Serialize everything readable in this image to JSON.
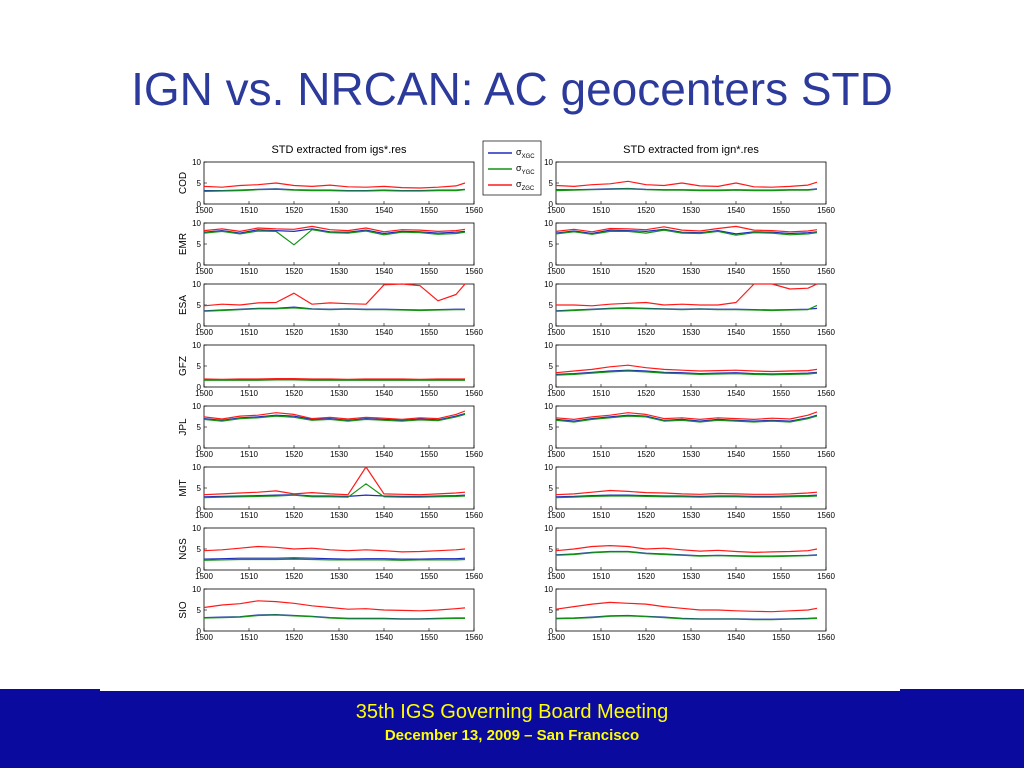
{
  "slide": {
    "title": "IGN vs. NRCAN: AC geocenters STD",
    "footer_title": "35th IGS Governing Board Meeting",
    "footer_subtitle": "December 13, 2009 – San Francisco"
  },
  "chart_data": {
    "type": "line",
    "columns": [
      {
        "title": "STD extracted from igs*.res"
      },
      {
        "title": "STD extracted from ign*.res"
      }
    ],
    "rows": [
      "COD",
      "EMR",
      "ESA",
      "GFZ",
      "JPL",
      "MIT",
      "NGS",
      "SIO"
    ],
    "xlim": [
      1500,
      1560
    ],
    "ylim": [
      0,
      10
    ],
    "xticks": [
      1500,
      1510,
      1520,
      1530,
      1540,
      1550,
      1560
    ],
    "yticks": [
      0,
      5,
      10
    ],
    "legend": {
      "placement": "between-columns-top",
      "entries": [
        {
          "symbol": "σ",
          "sub": "XGC",
          "color": "#1f2dbf"
        },
        {
          "symbol": "σ",
          "sub": "YGC",
          "color": "#149414"
        },
        {
          "symbol": "σ",
          "sub": "ZGC",
          "color": "#ff1a1a"
        }
      ]
    },
    "series_colors": {
      "X": "#1f2dbf",
      "Y": "#149414",
      "Z": "#ff1a1a"
    },
    "x": [
      1500,
      1504,
      1508,
      1512,
      1516,
      1520,
      1524,
      1528,
      1532,
      1536,
      1540,
      1544,
      1548,
      1552,
      1556,
      1558
    ],
    "panels": [
      [
        {
          "X": [
            3.2,
            3.2,
            3.3,
            3.5,
            3.6,
            3.4,
            3.3,
            3.3,
            3.2,
            3.2,
            3.3,
            3.2,
            3.2,
            3.3,
            3.3,
            3.5
          ],
          "Y": [
            3.0,
            3.1,
            3.2,
            3.4,
            3.5,
            3.3,
            3.2,
            3.2,
            3.1,
            3.1,
            3.2,
            3.1,
            3.1,
            3.2,
            3.2,
            3.4
          ],
          "Z": [
            4.2,
            4.0,
            4.4,
            4.6,
            5.0,
            4.4,
            4.2,
            4.5,
            4.1,
            4.0,
            4.2,
            3.9,
            3.8,
            4.0,
            4.3,
            5.0
          ]
        },
        {
          "X": [
            7.8,
            8.2,
            7.6,
            8.4,
            8.2,
            8.0,
            8.6,
            7.9,
            7.8,
            8.3,
            7.5,
            8.0,
            7.9,
            7.6,
            7.8,
            8.0
          ],
          "Y": [
            7.6,
            8.0,
            7.4,
            8.1,
            8.0,
            4.8,
            8.4,
            7.7,
            7.6,
            8.1,
            7.2,
            7.8,
            7.7,
            7.3,
            7.5,
            7.8
          ],
          "Z": [
            8.2,
            8.6,
            8.0,
            8.8,
            8.6,
            8.5,
            9.2,
            8.4,
            8.2,
            8.8,
            7.9,
            8.4,
            8.3,
            8.0,
            8.2,
            8.5
          ]
        },
        {
          "X": [
            3.6,
            3.8,
            4.0,
            4.2,
            4.2,
            4.5,
            4.1,
            4.0,
            4.1,
            4.0,
            4.0,
            3.9,
            3.8,
            3.9,
            4.0,
            4.0
          ],
          "Y": [
            3.5,
            3.7,
            3.9,
            4.1,
            4.1,
            4.3,
            4.0,
            3.9,
            4.0,
            3.9,
            3.9,
            3.8,
            3.7,
            3.8,
            3.9,
            3.9
          ],
          "Z": [
            4.8,
            5.2,
            5.0,
            5.5,
            5.6,
            7.8,
            5.2,
            5.5,
            5.3,
            5.2,
            9.8,
            10.0,
            9.6,
            6.0,
            7.5,
            10.0
          ]
        },
        {
          "X": [
            1.7,
            1.7,
            1.7,
            1.7,
            1.8,
            1.8,
            1.7,
            1.7,
            1.7,
            1.7,
            1.7,
            1.7,
            1.7,
            1.7,
            1.7,
            1.7
          ],
          "Y": [
            1.6,
            1.6,
            1.6,
            1.6,
            1.7,
            1.7,
            1.6,
            1.6,
            1.6,
            1.6,
            1.6,
            1.6,
            1.6,
            1.6,
            1.6,
            1.6
          ],
          "Z": [
            1.9,
            1.8,
            1.9,
            1.9,
            2.0,
            2.0,
            1.9,
            1.9,
            1.8,
            1.9,
            1.9,
            1.9,
            1.8,
            1.9,
            1.9,
            1.9
          ]
        },
        {
          "X": [
            7.0,
            6.6,
            7.2,
            7.4,
            7.8,
            7.6,
            6.8,
            7.0,
            6.6,
            7.0,
            6.8,
            6.6,
            6.9,
            6.7,
            7.6,
            8.2
          ],
          "Y": [
            6.8,
            6.4,
            7.0,
            7.2,
            7.6,
            7.3,
            6.6,
            6.8,
            6.4,
            6.8,
            6.6,
            6.4,
            6.7,
            6.5,
            7.4,
            8.0
          ],
          "Z": [
            7.4,
            6.9,
            7.6,
            7.8,
            8.4,
            8.0,
            7.0,
            7.3,
            6.9,
            7.3,
            7.1,
            6.8,
            7.2,
            7.0,
            8.0,
            8.8
          ]
        },
        {
          "X": [
            2.9,
            3.0,
            3.1,
            3.2,
            3.3,
            3.4,
            3.1,
            3.1,
            3.0,
            3.3,
            3.1,
            3.0,
            3.0,
            3.1,
            3.2,
            3.3
          ],
          "Y": [
            2.7,
            2.8,
            2.9,
            3.0,
            3.1,
            3.3,
            2.9,
            2.9,
            2.8,
            6.0,
            2.9,
            2.8,
            2.8,
            2.9,
            3.0,
            3.1
          ],
          "Z": [
            3.4,
            3.6,
            3.8,
            4.0,
            4.3,
            3.6,
            3.9,
            3.6,
            3.4,
            10.0,
            3.6,
            3.5,
            3.4,
            3.6,
            3.8,
            4.0
          ]
        },
        {
          "X": [
            2.6,
            2.7,
            2.8,
            2.8,
            2.8,
            2.9,
            2.8,
            2.7,
            2.6,
            2.7,
            2.7,
            2.6,
            2.6,
            2.7,
            2.7,
            2.8
          ],
          "Y": [
            2.3,
            2.4,
            2.5,
            2.5,
            2.5,
            2.6,
            2.5,
            2.4,
            2.4,
            2.4,
            2.4,
            2.3,
            2.4,
            2.4,
            2.4,
            2.5
          ],
          "Z": [
            4.6,
            4.8,
            5.2,
            5.6,
            5.4,
            5.0,
            5.2,
            4.8,
            4.6,
            4.8,
            4.6,
            4.3,
            4.4,
            4.6,
            4.8,
            5.0
          ]
        },
        {
          "X": [
            3.2,
            3.3,
            3.4,
            3.8,
            3.9,
            3.7,
            3.5,
            3.2,
            3.0,
            3.0,
            3.0,
            2.9,
            2.9,
            3.0,
            3.1,
            3.1
          ],
          "Y": [
            3.1,
            3.2,
            3.3,
            3.7,
            3.8,
            3.6,
            3.4,
            3.1,
            2.9,
            2.9,
            2.9,
            2.8,
            2.8,
            2.9,
            3.0,
            3.0
          ],
          "Z": [
            5.6,
            6.2,
            6.5,
            7.2,
            7.0,
            6.6,
            6.0,
            5.6,
            5.2,
            5.3,
            5.0,
            4.9,
            4.8,
            5.0,
            5.3,
            5.5
          ]
        }
      ],
      [
        {
          "X": [
            3.4,
            3.4,
            3.5,
            3.6,
            3.7,
            3.5,
            3.4,
            3.4,
            3.3,
            3.3,
            3.4,
            3.3,
            3.3,
            3.4,
            3.4,
            3.6
          ],
          "Y": [
            3.2,
            3.3,
            3.4,
            3.5,
            3.6,
            3.4,
            3.3,
            3.3,
            3.2,
            3.2,
            3.3,
            3.2,
            3.2,
            3.3,
            3.3,
            3.5
          ],
          "Z": [
            4.4,
            4.2,
            4.6,
            4.8,
            5.4,
            4.6,
            4.4,
            5.0,
            4.3,
            4.2,
            5.0,
            4.1,
            4.0,
            4.2,
            4.5,
            5.2
          ]
        },
        {
          "X": [
            7.6,
            8.1,
            7.5,
            8.3,
            8.2,
            8.0,
            8.5,
            7.8,
            7.7,
            8.2,
            7.4,
            7.9,
            7.8,
            7.5,
            7.7,
            7.9
          ],
          "Y": [
            7.4,
            7.9,
            7.3,
            8.0,
            8.0,
            7.6,
            8.3,
            7.6,
            7.5,
            8.0,
            7.1,
            7.7,
            7.6,
            7.2,
            7.4,
            7.7
          ],
          "Z": [
            8.0,
            8.5,
            7.9,
            8.7,
            8.6,
            8.4,
            9.1,
            8.3,
            8.1,
            8.7,
            9.2,
            8.3,
            8.2,
            7.9,
            8.1,
            8.4
          ]
        },
        {
          "X": [
            3.6,
            3.8,
            4.0,
            4.2,
            4.3,
            4.2,
            4.1,
            4.0,
            4.1,
            4.0,
            4.0,
            3.9,
            3.8,
            3.9,
            4.0,
            4.2
          ],
          "Y": [
            3.5,
            3.7,
            3.9,
            4.1,
            4.2,
            4.1,
            4.0,
            3.9,
            4.0,
            3.9,
            3.9,
            3.8,
            3.7,
            3.8,
            3.9,
            4.9
          ],
          "Z": [
            5.0,
            5.0,
            4.8,
            5.2,
            5.4,
            5.6,
            5.0,
            5.2,
            5.0,
            5.0,
            5.6,
            10.0,
            10.0,
            8.8,
            9.0,
            10.0
          ]
        },
        {
          "X": [
            3.0,
            3.2,
            3.5,
            3.8,
            4.0,
            3.8,
            3.5,
            3.4,
            3.2,
            3.3,
            3.4,
            3.2,
            3.1,
            3.2,
            3.3,
            3.5
          ],
          "Y": [
            2.8,
            3.0,
            3.3,
            3.6,
            3.8,
            3.6,
            3.3,
            3.2,
            3.0,
            3.1,
            3.2,
            3.0,
            2.9,
            3.0,
            3.1,
            3.3
          ],
          "Z": [
            3.4,
            3.8,
            4.2,
            4.8,
            5.2,
            4.6,
            4.2,
            4.0,
            3.8,
            3.9,
            4.0,
            3.8,
            3.7,
            3.8,
            3.9,
            4.2
          ]
        },
        {
          "X": [
            6.8,
            6.4,
            7.0,
            7.4,
            7.8,
            7.6,
            6.6,
            6.8,
            6.4,
            6.8,
            6.6,
            6.4,
            6.6,
            6.4,
            7.2,
            7.8
          ],
          "Y": [
            6.6,
            6.2,
            6.8,
            7.2,
            7.6,
            7.4,
            6.4,
            6.6,
            6.2,
            6.6,
            6.4,
            6.2,
            6.4,
            6.2,
            7.0,
            7.6
          ],
          "Z": [
            7.2,
            6.8,
            7.4,
            7.8,
            8.4,
            8.0,
            7.0,
            7.2,
            6.8,
            7.2,
            7.0,
            6.8,
            7.1,
            6.9,
            7.8,
            8.6
          ]
        },
        {
          "X": [
            2.9,
            3.0,
            3.2,
            3.3,
            3.3,
            3.2,
            3.1,
            3.1,
            3.0,
            3.1,
            3.1,
            3.0,
            3.0,
            3.1,
            3.2,
            3.3
          ],
          "Y": [
            2.7,
            2.8,
            3.0,
            3.1,
            3.1,
            3.0,
            2.9,
            2.9,
            2.8,
            2.9,
            2.9,
            2.8,
            2.8,
            2.9,
            3.0,
            3.1
          ],
          "Z": [
            3.4,
            3.6,
            4.0,
            4.4,
            4.2,
            3.9,
            3.8,
            3.6,
            3.5,
            3.7,
            3.6,
            3.5,
            3.5,
            3.6,
            3.8,
            4.0
          ]
        },
        {
          "X": [
            3.6,
            3.8,
            4.2,
            4.4,
            4.4,
            4.0,
            3.8,
            3.6,
            3.4,
            3.5,
            3.4,
            3.3,
            3.3,
            3.4,
            3.5,
            3.6
          ],
          "Y": [
            3.5,
            3.7,
            4.1,
            4.3,
            4.3,
            3.9,
            3.7,
            3.5,
            3.3,
            3.4,
            3.3,
            3.2,
            3.2,
            3.3,
            3.4,
            3.5
          ],
          "Z": [
            4.6,
            5.0,
            5.6,
            5.8,
            5.6,
            5.0,
            5.2,
            4.8,
            4.5,
            4.7,
            4.4,
            4.2,
            4.3,
            4.4,
            4.6,
            5.0
          ]
        },
        {
          "X": [
            3.0,
            3.1,
            3.3,
            3.6,
            3.7,
            3.5,
            3.3,
            3.0,
            2.9,
            2.9,
            2.9,
            2.8,
            2.8,
            2.9,
            3.0,
            3.1
          ],
          "Y": [
            2.9,
            3.0,
            3.2,
            3.5,
            3.6,
            3.4,
            3.2,
            2.9,
            2.8,
            2.8,
            2.8,
            2.7,
            2.7,
            2.8,
            2.9,
            3.0
          ],
          "Z": [
            5.2,
            5.8,
            6.4,
            6.8,
            6.6,
            6.4,
            5.8,
            5.4,
            5.0,
            5.0,
            4.8,
            4.7,
            4.6,
            4.8,
            5.0,
            5.4
          ]
        }
      ]
    ]
  }
}
